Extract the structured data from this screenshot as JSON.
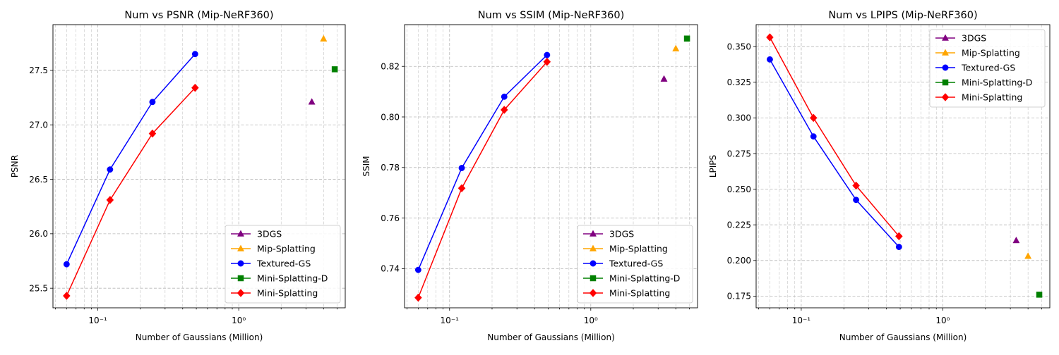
{
  "chart_data": [
    {
      "type": "line",
      "title": "Num vs PSNR (Mip-NeRF360)",
      "xlabel": "Number of Gaussians (Million)",
      "ylabel": "PSNR",
      "xscale": "log",
      "xlim": [
        0.048,
        5.7
      ],
      "ylim": [
        25.32,
        27.92
      ],
      "xticks": [
        {
          "value": 0.1,
          "label": "10⁻¹"
        },
        {
          "value": 1,
          "label": "10⁰"
        }
      ],
      "yticks": [
        {
          "value": 25.5,
          "label": "25.5"
        },
        {
          "value": 26.0,
          "label": "26.0"
        },
        {
          "value": 26.5,
          "label": "26.5"
        },
        {
          "value": 27.0,
          "label": "27.0"
        },
        {
          "value": 27.5,
          "label": "27.5"
        }
      ],
      "grid": true,
      "legend_position": "lower-right",
      "series": [
        {
          "name": "3DGS",
          "color": "#800080",
          "marker": "triangle",
          "line": false,
          "x": [
            3.3
          ],
          "y": [
            27.21
          ]
        },
        {
          "name": "Mip-Splatting",
          "color": "#ffa500",
          "marker": "triangle",
          "line": false,
          "x": [
            4.0
          ],
          "y": [
            27.79
          ]
        },
        {
          "name": "Textured-GS",
          "color": "#0000ff",
          "marker": "circle",
          "line": true,
          "x": [
            0.06,
            0.122,
            0.244,
            0.49
          ],
          "y": [
            25.72,
            26.59,
            27.21,
            27.65
          ]
        },
        {
          "name": "Mini-Splatting-D",
          "color": "#008000",
          "marker": "square",
          "line": false,
          "x": [
            4.8
          ],
          "y": [
            27.51
          ]
        },
        {
          "name": "Mini-Splatting",
          "color": "#ff0000",
          "marker": "diamond",
          "line": true,
          "x": [
            0.06,
            0.122,
            0.244,
            0.49
          ],
          "y": [
            25.43,
            26.31,
            26.92,
            27.34
          ]
        }
      ]
    },
    {
      "type": "line",
      "title": "Num vs SSIM (Mip-NeRF360)",
      "xlabel": "Number of Gaussians (Million)",
      "ylabel": "SSIM",
      "xscale": "log",
      "xlim": [
        0.048,
        5.7
      ],
      "ylim": [
        0.7245,
        0.8365
      ],
      "xticks": [
        {
          "value": 0.1,
          "label": "10⁻¹"
        },
        {
          "value": 1,
          "label": "10⁰"
        }
      ],
      "yticks": [
        {
          "value": 0.74,
          "label": "0.74"
        },
        {
          "value": 0.76,
          "label": "0.76"
        },
        {
          "value": 0.78,
          "label": "0.78"
        },
        {
          "value": 0.8,
          "label": "0.80"
        },
        {
          "value": 0.82,
          "label": "0.82"
        }
      ],
      "grid": true,
      "legend_position": "lower-right",
      "series": [
        {
          "name": "3DGS",
          "color": "#800080",
          "marker": "triangle",
          "line": false,
          "x": [
            3.3
          ],
          "y": [
            0.815
          ]
        },
        {
          "name": "Mip-Splatting",
          "color": "#ffa500",
          "marker": "triangle",
          "line": false,
          "x": [
            4.0
          ],
          "y": [
            0.827
          ]
        },
        {
          "name": "Textured-GS",
          "color": "#0000ff",
          "marker": "circle",
          "line": true,
          "x": [
            0.06,
            0.122,
            0.244,
            0.49
          ],
          "y": [
            0.7395,
            0.7798,
            0.808,
            0.8245
          ]
        },
        {
          "name": "Mini-Splatting-D",
          "color": "#008000",
          "marker": "square",
          "line": false,
          "x": [
            4.8
          ],
          "y": [
            0.831
          ]
        },
        {
          "name": "Mini-Splatting",
          "color": "#ff0000",
          "marker": "diamond",
          "line": true,
          "x": [
            0.06,
            0.122,
            0.244,
            0.49
          ],
          "y": [
            0.7285,
            0.7718,
            0.8028,
            0.8218
          ]
        }
      ]
    },
    {
      "type": "line",
      "title": "Num vs LPIPS (Mip-NeRF360)",
      "xlabel": "Number of Gaussians (Million)",
      "ylabel": "LPIPS",
      "xscale": "log",
      "xlim": [
        0.048,
        5.7
      ],
      "ylim": [
        0.1668,
        0.3654
      ],
      "xticks": [
        {
          "value": 0.1,
          "label": "10⁻¹"
        },
        {
          "value": 1,
          "label": "10⁰"
        }
      ],
      "yticks": [
        {
          "value": 0.175,
          "label": "0.175"
        },
        {
          "value": 0.2,
          "label": "0.200"
        },
        {
          "value": 0.225,
          "label": "0.225"
        },
        {
          "value": 0.25,
          "label": "0.250"
        },
        {
          "value": 0.275,
          "label": "0.275"
        },
        {
          "value": 0.3,
          "label": "0.300"
        },
        {
          "value": 0.325,
          "label": "0.325"
        },
        {
          "value": 0.35,
          "label": "0.350"
        }
      ],
      "grid": true,
      "legend_position": "upper-right",
      "series": [
        {
          "name": "3DGS",
          "color": "#800080",
          "marker": "triangle",
          "line": false,
          "x": [
            3.3
          ],
          "y": [
            0.214
          ]
        },
        {
          "name": "Mip-Splatting",
          "color": "#ffa500",
          "marker": "triangle",
          "line": false,
          "x": [
            4.0
          ],
          "y": [
            0.203
          ]
        },
        {
          "name": "Textured-GS",
          "color": "#0000ff",
          "marker": "circle",
          "line": true,
          "x": [
            0.06,
            0.122,
            0.244,
            0.49
          ],
          "y": [
            0.341,
            0.287,
            0.2425,
            0.2095
          ]
        },
        {
          "name": "Mini-Splatting-D",
          "color": "#008000",
          "marker": "square",
          "line": false,
          "x": [
            4.8
          ],
          "y": [
            0.176
          ]
        },
        {
          "name": "Mini-Splatting",
          "color": "#ff0000",
          "marker": "diamond",
          "line": true,
          "x": [
            0.06,
            0.122,
            0.244,
            0.49
          ],
          "y": [
            0.3565,
            0.3,
            0.2525,
            0.217
          ]
        }
      ]
    }
  ]
}
